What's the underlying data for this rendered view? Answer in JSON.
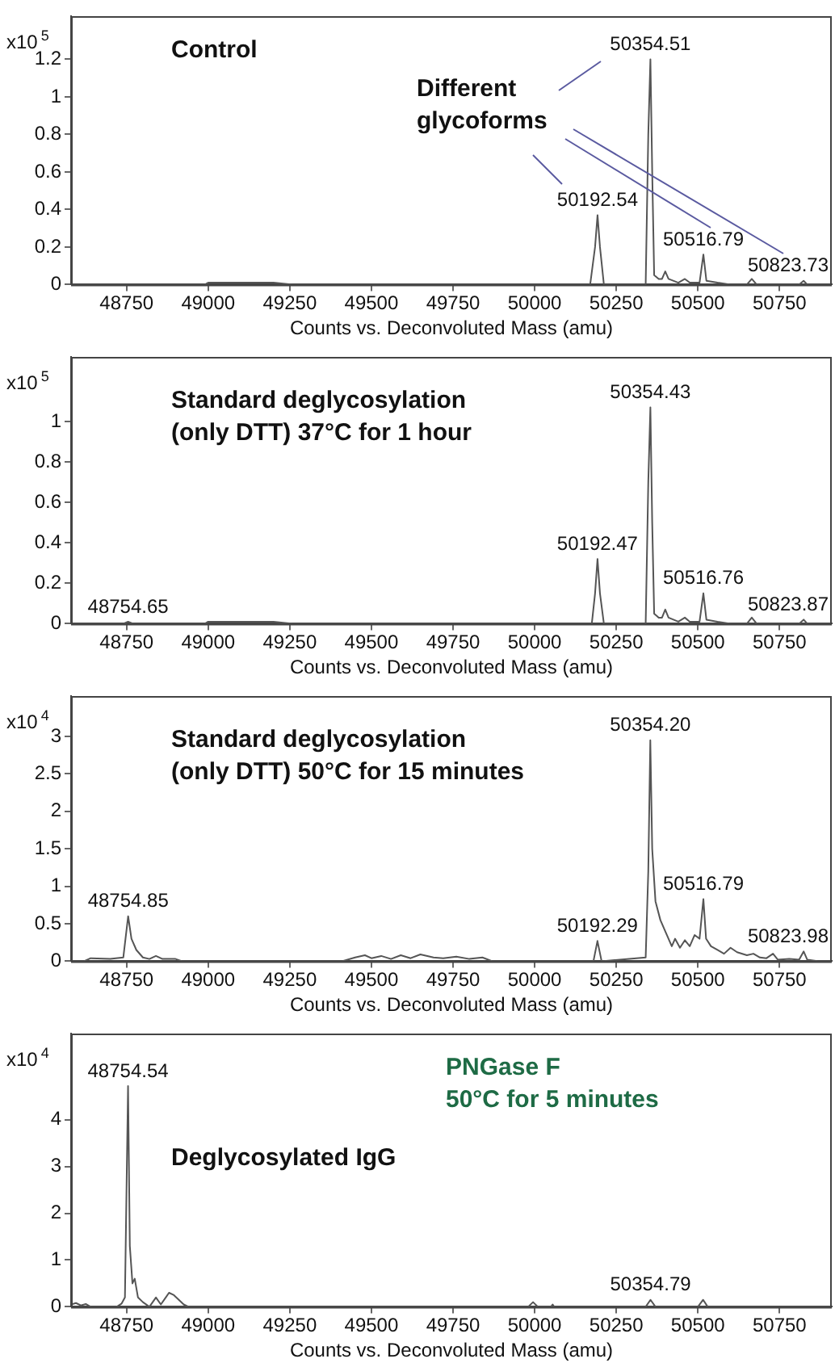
{
  "chart_data": [
    {
      "type": "line",
      "title": "Control",
      "xlabel": "Counts vs. Deconvoluted Mass (amu)",
      "ylabel": "x10$^{5}$",
      "xlim": [
        48580,
        50910
      ],
      "xticks": [
        48750,
        49000,
        49250,
        49500,
        49750,
        50000,
        50250,
        50500,
        50750
      ],
      "ylim": [
        0,
        1.43
      ],
      "yticks": [
        0,
        0.2,
        0.4,
        0.6,
        0.8,
        1,
        1.2
      ],
      "x": [
        48580,
        48990,
        49000,
        49050,
        49100,
        49150,
        49200,
        49260,
        49280,
        50170,
        50185,
        50192.54,
        50200,
        50212,
        50340,
        50348,
        50354.51,
        50360,
        50366,
        50380,
        50390,
        50400,
        50410,
        50440,
        50460,
        50475,
        50505,
        50516.79,
        50526,
        50560,
        50600,
        50650,
        50665,
        50680,
        50810,
        50823.73,
        50835,
        50910
      ],
      "series": [
        {
          "color": "#555555",
          "values": [
            0,
            0,
            0.01,
            0.01,
            0.01,
            0.01,
            0.01,
            0,
            0,
            0,
            0.2,
            0.37,
            0.2,
            0,
            0,
            0.8,
            1.2,
            0.6,
            0.05,
            0.03,
            0.03,
            0.07,
            0.03,
            0.01,
            0.03,
            0.01,
            0.01,
            0.16,
            0.02,
            0.01,
            0,
            0,
            0.03,
            0,
            0,
            0.02,
            0,
            0
          ]
        }
      ],
      "annotations": [
        "Different\nglycoforms",
        {
          "text": "50192.54",
          "x": 50192.54,
          "y": 0.37
        },
        {
          "text": "50354.51",
          "x": 50354.51,
          "y": 1.2
        },
        {
          "text": "50516.79",
          "x": 50516.79,
          "y": 0.16
        },
        {
          "text": "50823.73",
          "x": 50823.73,
          "y": 0.02
        }
      ]
    },
    {
      "type": "line",
      "title": "Standard deglycosylation\n(only DTT) 37°C for 1 hour",
      "xlabel": "Counts vs. Deconvoluted Mass (amu)",
      "ylabel": "x10$^{5}$",
      "xlim": [
        48580,
        50910
      ],
      "xticks": [
        48750,
        49000,
        49250,
        49500,
        49750,
        50000,
        50250,
        50500,
        50750
      ],
      "ylim": [
        0,
        1.32
      ],
      "yticks": [
        0,
        0.2,
        0.4,
        0.6,
        0.8,
        1
      ],
      "x": [
        48580,
        48740,
        48754.65,
        48770,
        48990,
        49000,
        49050,
        49100,
        49150,
        49200,
        49260,
        49280,
        50175,
        50185,
        50192.47,
        50200,
        50212,
        50340,
        50348,
        50354.43,
        50360,
        50366,
        50380,
        50390,
        50400,
        50410,
        50440,
        50460,
        50475,
        50505,
        50516.76,
        50526,
        50560,
        50600,
        50650,
        50665,
        50680,
        50810,
        50823.87,
        50835,
        50910
      ],
      "series": [
        {
          "color": "#555555",
          "values": [
            0,
            0,
            0.01,
            0,
            0,
            0.01,
            0.01,
            0.01,
            0.01,
            0.01,
            0,
            0,
            0,
            0.15,
            0.32,
            0.15,
            0,
            0,
            0.7,
            1.07,
            0.5,
            0.05,
            0.03,
            0.03,
            0.07,
            0.03,
            0.01,
            0.03,
            0.01,
            0.01,
            0.15,
            0.02,
            0.01,
            0,
            0,
            0.03,
            0,
            0,
            0.02,
            0,
            0
          ]
        }
      ],
      "annotations": [
        {
          "text": "48754.65",
          "x": 48754.65,
          "y": 0.01
        },
        {
          "text": "50192.47",
          "x": 50192.47,
          "y": 0.32
        },
        {
          "text": "50354.43",
          "x": 50354.43,
          "y": 1.07
        },
        {
          "text": "50516.76",
          "x": 50516.76,
          "y": 0.15
        },
        {
          "text": "50823.87",
          "x": 50823.87,
          "y": 0.02
        }
      ]
    },
    {
      "type": "line",
      "title": "Standard deglycosylation\n(only DTT) 50°C for 15 minutes",
      "xlabel": "Counts vs. Deconvoluted Mass (amu)",
      "ylabel": "x10$^{4}$",
      "xlim": [
        48580,
        50910
      ],
      "xticks": [
        48750,
        49000,
        49250,
        49500,
        49750,
        50000,
        50250,
        50500,
        50750
      ],
      "ylim": [
        0,
        3.54
      ],
      "yticks": [
        0,
        0.5,
        1,
        1.5,
        2,
        2.5,
        3
      ],
      "x": [
        48580,
        48620,
        48640,
        48700,
        48740,
        48754.85,
        48765,
        48780,
        48800,
        48820,
        48840,
        48860,
        48900,
        48920,
        49410,
        49450,
        49480,
        49500,
        49530,
        49560,
        49590,
        49620,
        49650,
        49690,
        49720,
        49760,
        49800,
        49840,
        49870,
        50180,
        50192.29,
        50205,
        50340,
        50348,
        50354.2,
        50360,
        50370,
        50385,
        50400,
        50420,
        50430,
        50445,
        50460,
        50475,
        50490,
        50505,
        50516.79,
        50525,
        50540,
        50560,
        50580,
        50600,
        50620,
        50650,
        50670,
        50690,
        50710,
        50730,
        50745,
        50780,
        50810,
        50823.98,
        50835,
        50870,
        50910
      ],
      "series": [
        {
          "color": "#555555",
          "values": [
            0,
            0,
            0.04,
            0.03,
            0.05,
            0.6,
            0.3,
            0.15,
            0.05,
            0.03,
            0.07,
            0.03,
            0.03,
            0,
            0,
            0.05,
            0.08,
            0.04,
            0.07,
            0.03,
            0.08,
            0.04,
            0.09,
            0.05,
            0.04,
            0.06,
            0.03,
            0.05,
            0,
            0,
            0.27,
            0,
            0.05,
            1.2,
            2.95,
            1.5,
            0.8,
            0.55,
            0.4,
            0.2,
            0.3,
            0.18,
            0.28,
            0.2,
            0.35,
            0.3,
            0.83,
            0.3,
            0.2,
            0.15,
            0.1,
            0.18,
            0.12,
            0.08,
            0.1,
            0.05,
            0.04,
            0.1,
            0.02,
            0.03,
            0.02,
            0.13,
            0.02,
            0,
            0
          ]
        }
      ],
      "annotations": [
        {
          "text": "48754.85",
          "x": 48754.85,
          "y": 0.6
        },
        {
          "text": "50192.29",
          "x": 50192.29,
          "y": 0.27
        },
        {
          "text": "50354.20",
          "x": 50354.2,
          "y": 2.95
        },
        {
          "text": "50516.79",
          "x": 50516.79,
          "y": 0.83
        },
        {
          "text": "50823.98",
          "x": 50823.98,
          "y": 0.13
        }
      ]
    },
    {
      "type": "line",
      "title": "Deglycosylated IgG",
      "subtitle": "PNGase F\n50°C for 5 minutes",
      "xlabel": "Counts vs. Deconvoluted Mass (amu)",
      "ylabel": "x10$^{4}$",
      "xlim": [
        48580,
        50910
      ],
      "xticks": [
        48750,
        49000,
        49250,
        49500,
        49750,
        50000,
        50250,
        50500,
        50750
      ],
      "ylim": [
        0,
        5.84
      ],
      "yticks": [
        0,
        1,
        2,
        3,
        4
      ],
      "x": [
        48580,
        48595,
        48610,
        48625,
        48640,
        48720,
        48735,
        48745,
        48754.54,
        48760,
        48768,
        48775,
        48785,
        48800,
        48820,
        48840,
        48855,
        48870,
        48880,
        48895,
        48910,
        48925,
        48940,
        49980,
        49995,
        50010,
        50050,
        50055,
        50060,
        50340,
        50354.79,
        50370,
        50500,
        50516,
        50530,
        50910
      ],
      "series": [
        {
          "color": "#555555",
          "values": [
            0.05,
            0.08,
            0.03,
            0.06,
            0,
            0,
            0.07,
            0.2,
            4.72,
            1.3,
            0.5,
            0.6,
            0.2,
            0.1,
            0,
            0.2,
            0.05,
            0.2,
            0.3,
            0.25,
            0.15,
            0.05,
            0,
            0,
            0.1,
            0,
            0,
            0.05,
            0,
            0,
            0.15,
            0,
            0,
            0.15,
            0,
            0
          ]
        }
      ],
      "annotations": [
        {
          "text": "48754.54",
          "x": 48754.54,
          "y": 4.72
        },
        {
          "text": "50354.79",
          "x": 50354.79,
          "y": 0.15
        }
      ]
    }
  ]
}
